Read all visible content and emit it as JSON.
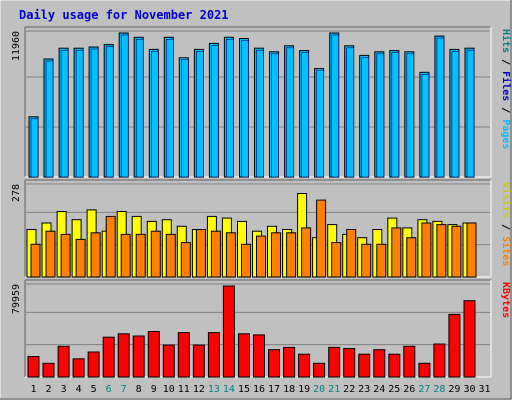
{
  "colors": {
    "background": "#c0c0c0",
    "plot": "#c0c0c0",
    "grid": "#808080",
    "title": "#0000cc",
    "weekday": "#000000",
    "weekend": "#008080",
    "hits": "#00c0ff",
    "files": "#0080ff",
    "pages": "#00c0ff",
    "visits": "#ffff00",
    "sites": "#ff8000",
    "kbytes": "#ff0000"
  },
  "chart_data": {
    "type": "bar",
    "title": "Daily usage for November 2021",
    "categories": [
      "1",
      "2",
      "3",
      "4",
      "5",
      "6",
      "7",
      "8",
      "9",
      "10",
      "11",
      "12",
      "13",
      "14",
      "15",
      "16",
      "17",
      "18",
      "19",
      "20",
      "21",
      "22",
      "23",
      "24",
      "25",
      "26",
      "27",
      "28",
      "29",
      "30",
      "31"
    ],
    "weekend_days": [
      "6",
      "7",
      "13",
      "14",
      "20",
      "21",
      "27",
      "28"
    ],
    "panels": [
      {
        "id": "hits",
        "ymax_label": "11960",
        "ymax": 11960,
        "side_labels": [
          {
            "text": "Hits",
            "color": "#008080"
          },
          {
            "text": " / ",
            "color": "#000000"
          },
          {
            "text": "Files",
            "color": "#0000cc"
          },
          {
            "text": " / ",
            "color": "#000000"
          },
          {
            "text": "Pages",
            "color": "#00c0ff"
          }
        ],
        "series": [
          {
            "name": "Hits",
            "values": [
              5000,
              9800,
              10700,
              10700,
              10800,
              11000,
              11960,
              11600,
              10600,
              11600,
              9900,
              10600,
              11100,
              11600,
              11500,
              10700,
              10400,
              10900,
              10500,
              9000,
              11960,
              10900,
              10100,
              10400,
              10500,
              10400,
              8700,
              11700,
              10600,
              10700,
              null
            ]
          }
        ]
      },
      {
        "id": "visits",
        "ymax_label": "278",
        "ymax": 278,
        "side_labels": [
          {
            "text": "Visits",
            "color": "#cccc00"
          },
          {
            "text": " / ",
            "color": "#000000"
          },
          {
            "text": "Sites",
            "color": "#ff8000"
          }
        ],
        "series": [
          {
            "name": "Visits",
            "values": [
              145,
              165,
              200,
              175,
              205,
              140,
              200,
              185,
              170,
              175,
              155,
              145,
              185,
              180,
              170,
              140,
              155,
              145,
              255,
              120,
              160,
              130,
              120,
              145,
              180,
              150,
              175,
              170,
              160,
              165,
              null
            ]
          },
          {
            "name": "Sites",
            "values": [
              100,
              140,
              130,
              115,
              135,
              185,
              130,
              130,
              140,
              130,
              105,
              145,
              140,
              135,
              100,
              125,
              135,
              135,
              150,
              235,
              105,
              145,
              100,
              100,
              150,
              120,
              165,
              160,
              155,
              165,
              null
            ]
          }
        ]
      },
      {
        "id": "kbytes",
        "ymax_label": "79959",
        "ymax": 79959,
        "side_labels": [
          {
            "text": "KBytes",
            "color": "#ff0000"
          }
        ],
        "series": [
          {
            "name": "KBytes",
            "values": [
              18000,
              12000,
              27000,
              16000,
              22000,
              35000,
              38000,
              36000,
              40000,
              28000,
              39000,
              28000,
              39000,
              79959,
              38000,
              37000,
              24000,
              26000,
              20000,
              12000,
              26000,
              25000,
              20000,
              24000,
              20000,
              27000,
              12000,
              29000,
              55000,
              67000,
              null
            ]
          }
        ]
      }
    ]
  }
}
